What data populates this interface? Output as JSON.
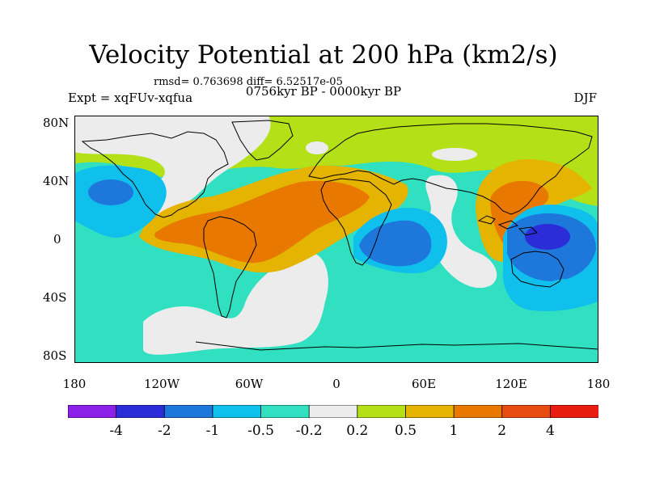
{
  "title": "Velocity Potential at 200 hPa (km2/s)",
  "stats": "rmsd= 0.763698 diff= 6.52517e-05",
  "experiment": "Expt = xqFUv-xqfua",
  "period": "0756kyr BP - 0000kyr BP",
  "season": "DJF",
  "x_ticks": [
    "180",
    "120W",
    "60W",
    "0",
    "60E",
    "120E",
    "180"
  ],
  "y_ticks": [
    "80N",
    "40N",
    "0",
    "40S",
    "80S"
  ],
  "colorbar": {
    "labels": [
      "-4",
      "-2",
      "-1",
      "-0.5",
      "-0.2",
      "0.2",
      "0.5",
      "1",
      "2",
      "4"
    ],
    "colors": [
      "#8c20e8",
      "#2c2cd8",
      "#1e78dc",
      "#10c0ec",
      "#30e0c0",
      "#ececec",
      "#b4e018",
      "#e4b400",
      "#e87800",
      "#e84c10",
      "#e81c10"
    ]
  }
}
